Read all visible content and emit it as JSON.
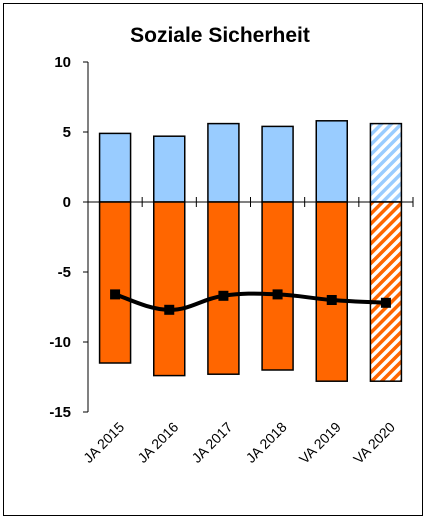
{
  "chart_data": {
    "type": "bar",
    "title": "Soziale Sicherheit",
    "categories": [
      "JA 2015",
      "JA 2016",
      "JA 2017",
      "JA 2018",
      "VA 2019",
      "VA 2020"
    ],
    "ylim": [
      -15,
      10
    ],
    "yticks": [
      10,
      5,
      0,
      -5,
      -10,
      -15
    ],
    "grid": false,
    "legend": "none",
    "stacked": true,
    "series": [
      {
        "kind": "bar",
        "values": [
          4.9,
          4.7,
          5.6,
          5.4,
          5.8,
          5.6
        ],
        "color": "#99ccff",
        "hatched_last": true
      },
      {
        "kind": "bar",
        "values": [
          -11.5,
          -12.4,
          -12.3,
          -12.0,
          -12.8,
          -12.8
        ],
        "color": "#ff6600",
        "hatched_last": true
      },
      {
        "kind": "line",
        "values": [
          -6.6,
          -7.7,
          -6.7,
          -6.6,
          -7.0,
          -7.2
        ],
        "color": "#000000"
      }
    ]
  }
}
